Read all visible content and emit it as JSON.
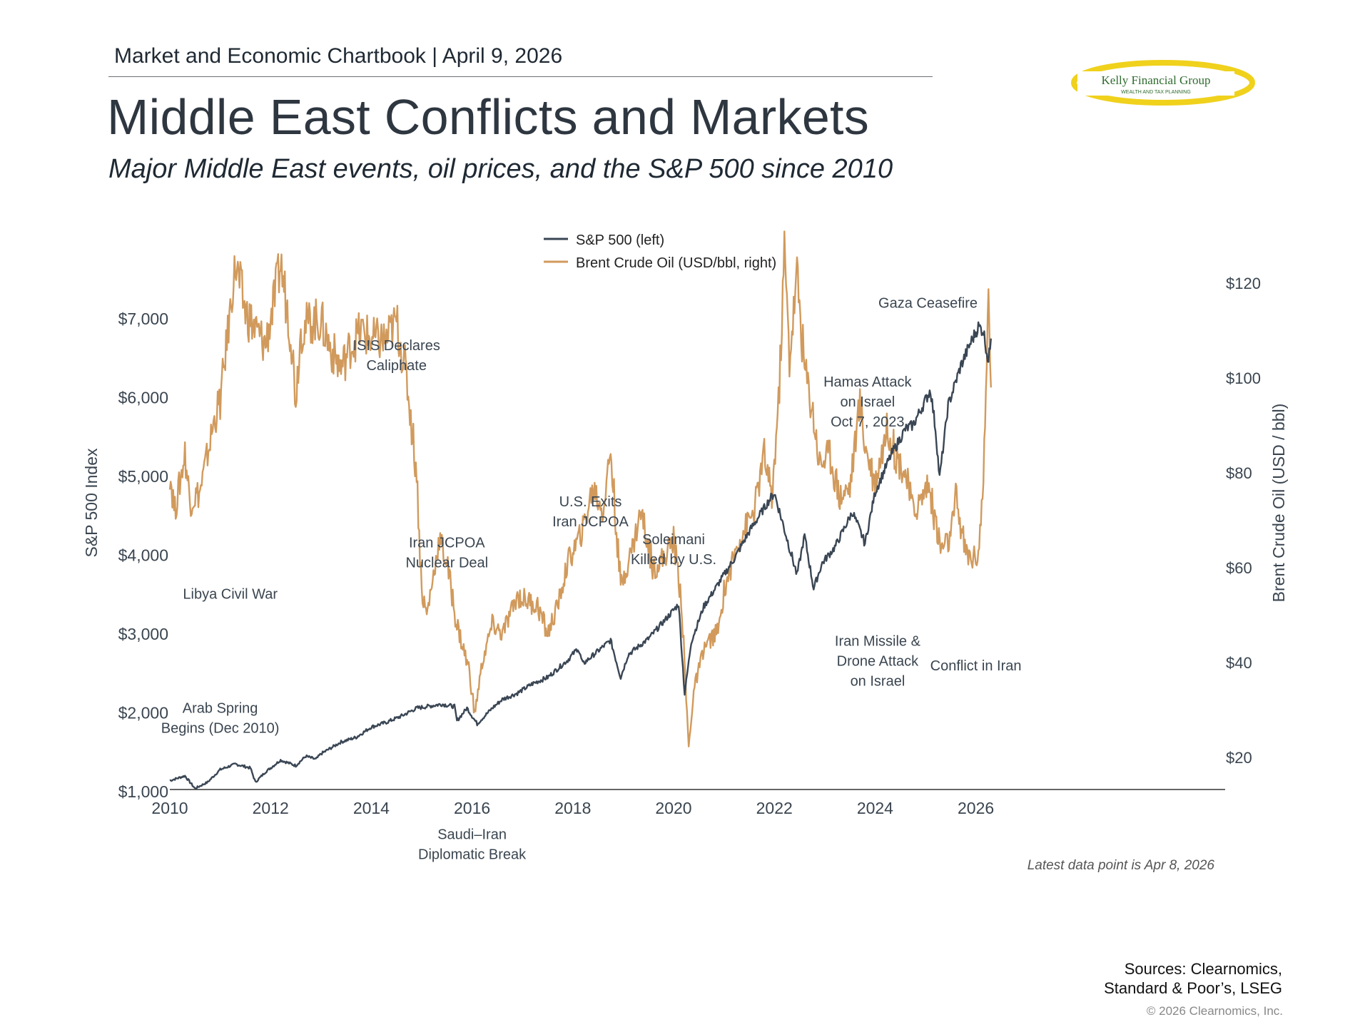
{
  "header": {
    "chartbook": "Market and Economic Chartbook",
    "separator": "|",
    "date": "April 9, 2026",
    "title": "Middle East Conflicts and Markets",
    "subtitle": "Major Middle East events, oil prices, and the S&P 500 since 2010"
  },
  "logo": {
    "name": "Kelly Financial Group",
    "tagline": "WEALTH AND TAX PLANNING"
  },
  "footer": {
    "sources_line1": "Sources: Clearnomics,",
    "sources_line2": "Standard & Poor’s, LSEG",
    "copyright": "© 2026 Clearnomics, Inc.",
    "latest": "Latest data point is Apr 8, 2026"
  },
  "colors": {
    "sp500": "#3a4654",
    "brent": "#d19a5c",
    "text": "#3a4550",
    "axis": "#333333"
  },
  "chart_data": {
    "type": "line",
    "title": "Middle East Conflicts and Markets",
    "xlabel": "",
    "ylabel_left": "S&P 500 Index",
    "ylabel_right": "Brent Crude Oil (USD / bbl)",
    "xlim": [
      2010,
      2026.8
    ],
    "ylim_left": [
      0,
      7000
    ],
    "ylim_right": [
      13,
      130
    ],
    "x_ticks": [
      2010,
      2012,
      2014,
      2016,
      2018,
      2020,
      2022,
      2024,
      2026
    ],
    "y_ticks_left": [
      {
        "v": 1000,
        "label": "$1,000"
      },
      {
        "v": 2000,
        "label": "$2,000"
      },
      {
        "v": 3000,
        "label": "$3,000"
      },
      {
        "v": 4000,
        "label": "$4,000"
      },
      {
        "v": 5000,
        "label": "$5,000"
      },
      {
        "v": 6000,
        "label": "$6,000"
      },
      {
        "v": 7000,
        "label": "$7,000"
      }
    ],
    "y_ticks_right": [
      {
        "v": 20,
        "label": "$20"
      },
      {
        "v": 40,
        "label": "$40"
      },
      {
        "v": 60,
        "label": "$60"
      },
      {
        "v": 80,
        "label": "$80"
      },
      {
        "v": 100,
        "label": "$100"
      },
      {
        "v": 120,
        "label": "$120"
      }
    ],
    "grid": false,
    "legend_position": "top-center",
    "series": [
      {
        "name": "S&P 500 (left)",
        "axis": "left",
        "points": [
          [
            2010.0,
            1140
          ],
          [
            2010.3,
            1200
          ],
          [
            2010.5,
            1040
          ],
          [
            2010.75,
            1120
          ],
          [
            2011.0,
            1280
          ],
          [
            2011.3,
            1350
          ],
          [
            2011.6,
            1300
          ],
          [
            2011.7,
            1120
          ],
          [
            2011.9,
            1250
          ],
          [
            2012.2,
            1400
          ],
          [
            2012.5,
            1330
          ],
          [
            2012.7,
            1450
          ],
          [
            2012.9,
            1410
          ],
          [
            2013.0,
            1480
          ],
          [
            2013.4,
            1630
          ],
          [
            2013.7,
            1690
          ],
          [
            2014.0,
            1820
          ],
          [
            2014.3,
            1880
          ],
          [
            2014.6,
            1960
          ],
          [
            2014.9,
            2060
          ],
          [
            2015.2,
            2090
          ],
          [
            2015.4,
            2110
          ],
          [
            2015.65,
            2080
          ],
          [
            2015.7,
            1900
          ],
          [
            2015.9,
            2060
          ],
          [
            2016.1,
            1860
          ],
          [
            2016.4,
            2060
          ],
          [
            2016.6,
            2170
          ],
          [
            2016.9,
            2250
          ],
          [
            2017.2,
            2370
          ],
          [
            2017.5,
            2450
          ],
          [
            2017.9,
            2670
          ],
          [
            2018.1,
            2820
          ],
          [
            2018.2,
            2620
          ],
          [
            2018.6,
            2840
          ],
          [
            2018.75,
            2920
          ],
          [
            2018.95,
            2450
          ],
          [
            2019.1,
            2740
          ],
          [
            2019.5,
            2940
          ],
          [
            2019.9,
            3230
          ],
          [
            2020.1,
            3380
          ],
          [
            2020.22,
            2240
          ],
          [
            2020.35,
            2900
          ],
          [
            2020.6,
            3350
          ],
          [
            2020.9,
            3650
          ],
          [
            2021.2,
            3950
          ],
          [
            2021.5,
            4300
          ],
          [
            2021.9,
            4700
          ],
          [
            2022.0,
            4790
          ],
          [
            2022.45,
            3750
          ],
          [
            2022.6,
            4250
          ],
          [
            2022.78,
            3580
          ],
          [
            2022.95,
            3900
          ],
          [
            2023.2,
            4100
          ],
          [
            2023.55,
            4550
          ],
          [
            2023.8,
            4150
          ],
          [
            2024.0,
            4800
          ],
          [
            2024.3,
            5250
          ],
          [
            2024.6,
            5600
          ],
          [
            2024.75,
            5650
          ],
          [
            2024.95,
            5900
          ],
          [
            2025.1,
            6100
          ],
          [
            2025.2,
            5600
          ],
          [
            2025.28,
            4980
          ],
          [
            2025.45,
            5900
          ],
          [
            2025.7,
            6400
          ],
          [
            2025.9,
            6700
          ],
          [
            2026.05,
            6900
          ],
          [
            2026.15,
            6850
          ],
          [
            2026.25,
            6450
          ],
          [
            2026.3,
            6750
          ]
        ]
      },
      {
        "name": "Brent Crude Oil (USD/bbl, right)",
        "axis": "right",
        "points": [
          [
            2010.0,
            80
          ],
          [
            2010.1,
            72
          ],
          [
            2010.3,
            84
          ],
          [
            2010.4,
            74
          ],
          [
            2010.6,
            76
          ],
          [
            2010.9,
            92
          ],
          [
            2011.0,
            95
          ],
          [
            2011.3,
            124
          ],
          [
            2011.5,
            114
          ],
          [
            2011.7,
            110
          ],
          [
            2011.9,
            107
          ],
          [
            2012.1,
            118
          ],
          [
            2012.2,
            124
          ],
          [
            2012.4,
            110
          ],
          [
            2012.5,
            96
          ],
          [
            2012.6,
            110
          ],
          [
            2012.8,
            112
          ],
          [
            2013.0,
            112
          ],
          [
            2013.2,
            106
          ],
          [
            2013.4,
            102
          ],
          [
            2013.6,
            107
          ],
          [
            2013.8,
            110
          ],
          [
            2014.0,
            108
          ],
          [
            2014.3,
            108
          ],
          [
            2014.5,
            112
          ],
          [
            2014.7,
            100
          ],
          [
            2014.9,
            80
          ],
          [
            2015.0,
            55
          ],
          [
            2015.1,
            50
          ],
          [
            2015.35,
            66
          ],
          [
            2015.5,
            61
          ],
          [
            2015.7,
            48
          ],
          [
            2015.95,
            38
          ],
          [
            2016.05,
            29
          ],
          [
            2016.2,
            40
          ],
          [
            2016.4,
            48
          ],
          [
            2016.6,
            46
          ],
          [
            2016.9,
            54
          ],
          [
            2017.3,
            52
          ],
          [
            2017.5,
            46
          ],
          [
            2017.7,
            52
          ],
          [
            2017.9,
            61
          ],
          [
            2018.2,
            68
          ],
          [
            2018.4,
            77
          ],
          [
            2018.6,
            72
          ],
          [
            2018.75,
            85
          ],
          [
            2018.85,
            70
          ],
          [
            2018.95,
            56
          ],
          [
            2019.2,
            65
          ],
          [
            2019.35,
            72
          ],
          [
            2019.6,
            60
          ],
          [
            2019.8,
            62
          ],
          [
            2020.0,
            66
          ],
          [
            2020.15,
            54
          ],
          [
            2020.3,
            22
          ],
          [
            2020.4,
            34
          ],
          [
            2020.6,
            43
          ],
          [
            2020.9,
            47
          ],
          [
            2021.0,
            55
          ],
          [
            2021.3,
            66
          ],
          [
            2021.6,
            72
          ],
          [
            2021.8,
            84
          ],
          [
            2021.95,
            74
          ],
          [
            2022.1,
            98
          ],
          [
            2022.2,
            127
          ],
          [
            2022.3,
            104
          ],
          [
            2022.45,
            122
          ],
          [
            2022.6,
            102
          ],
          [
            2022.75,
            94
          ],
          [
            2022.9,
            82
          ],
          [
            2023.1,
            84
          ],
          [
            2023.3,
            75
          ],
          [
            2023.5,
            77
          ],
          [
            2023.7,
            95
          ],
          [
            2023.8,
            86
          ],
          [
            2024.0,
            78
          ],
          [
            2024.25,
            90
          ],
          [
            2024.4,
            84
          ],
          [
            2024.6,
            80
          ],
          [
            2024.75,
            72
          ],
          [
            2024.9,
            74
          ],
          [
            2025.05,
            78
          ],
          [
            2025.3,
            64
          ],
          [
            2025.5,
            66
          ],
          [
            2025.6,
            75
          ],
          [
            2025.8,
            63
          ],
          [
            2025.95,
            62
          ],
          [
            2026.05,
            63
          ],
          [
            2026.15,
            78
          ],
          [
            2026.2,
            95
          ],
          [
            2026.25,
            118
          ],
          [
            2026.3,
            98
          ]
        ]
      }
    ],
    "annotations": [
      {
        "text": "Arab Spring\nBegins (Dec 2010)",
        "x": 2011.0,
        "y": 2000
      },
      {
        "text": "Libya Civil War",
        "x": 2011.2,
        "y": 3450
      },
      {
        "text": "ISIS Declares\nCaliphate",
        "x": 2014.5,
        "y": 6600
      },
      {
        "text": "Iran JCPOA\nNuclear Deal",
        "x": 2015.5,
        "y": 4100
      },
      {
        "text": "Saudi–Iran\nDiplomatic Break",
        "x": 2016.0,
        "y": 400
      },
      {
        "text": "U.S. Exits\nIran JCPOA",
        "x": 2018.35,
        "y": 4620
      },
      {
        "text": "Soleimani\nKilled by U.S.",
        "x": 2020.0,
        "y": 4140
      },
      {
        "text": "Hamas Attack\non Israel\nOct 7, 2023",
        "x": 2023.85,
        "y": 6140
      },
      {
        "text": "Gaza Ceasefire",
        "x": 2025.05,
        "y": 7140
      },
      {
        "text": "Iran Missile &\nDrone Attack\non Israel",
        "x": 2024.05,
        "y": 2850
      },
      {
        "text": "Conflict in Iran",
        "x": 2026.0,
        "y": 2540
      }
    ]
  }
}
